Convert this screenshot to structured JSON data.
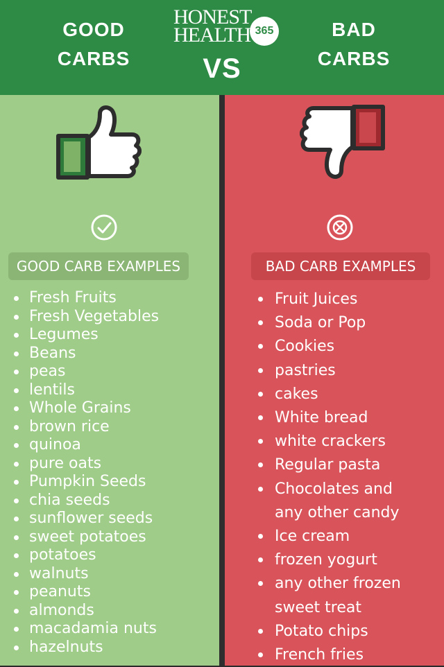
{
  "header": {
    "left_line1": "GOOD",
    "left_line2": "CARBS",
    "right_line1": "BAD",
    "right_line2": "CARBS",
    "vs": "VS",
    "brand_line1": "HONEST",
    "brand_line2": "HEALTH",
    "brand_number": "365",
    "background_color": "#2e8b45"
  },
  "good": {
    "background_color": "#9fcc88",
    "icon": "thumbs-up-icon",
    "mark_icon": "check-circle-icon",
    "label": "GOOD CARB EXAMPLES",
    "items": [
      "Fresh Fruits",
      "Fresh Vegetables",
      "Legumes",
      "Beans",
      "peas",
      "lentils",
      "Whole Grains",
      "brown rice",
      "quinoa",
      "pure oats",
      "Pumpkin Seeds",
      "chia seeds",
      "sunflower seeds",
      "sweet potatoes",
      "potatoes",
      "walnuts",
      "peanuts",
      "almonds",
      "macadamia nuts",
      "hazelnuts"
    ]
  },
  "bad": {
    "background_color": "#d9545a",
    "icon": "thumbs-down-icon",
    "mark_icon": "x-circle-icon",
    "label": "BAD CARB EXAMPLES",
    "items": [
      [
        "Fruit Juices"
      ],
      [
        "Soda or Pop"
      ],
      [
        "Cookies"
      ],
      [
        "pastries"
      ],
      [
        "cakes"
      ],
      [
        "White bread"
      ],
      [
        "white crackers"
      ],
      [
        "Regular pasta"
      ],
      [
        "Chocolates and",
        "any other candy"
      ],
      [
        "Ice cream"
      ],
      [
        "frozen yogurt"
      ],
      [
        "any other frozen",
        "sweet treat"
      ],
      [
        "Potato chips"
      ],
      [
        "French fries"
      ]
    ]
  }
}
